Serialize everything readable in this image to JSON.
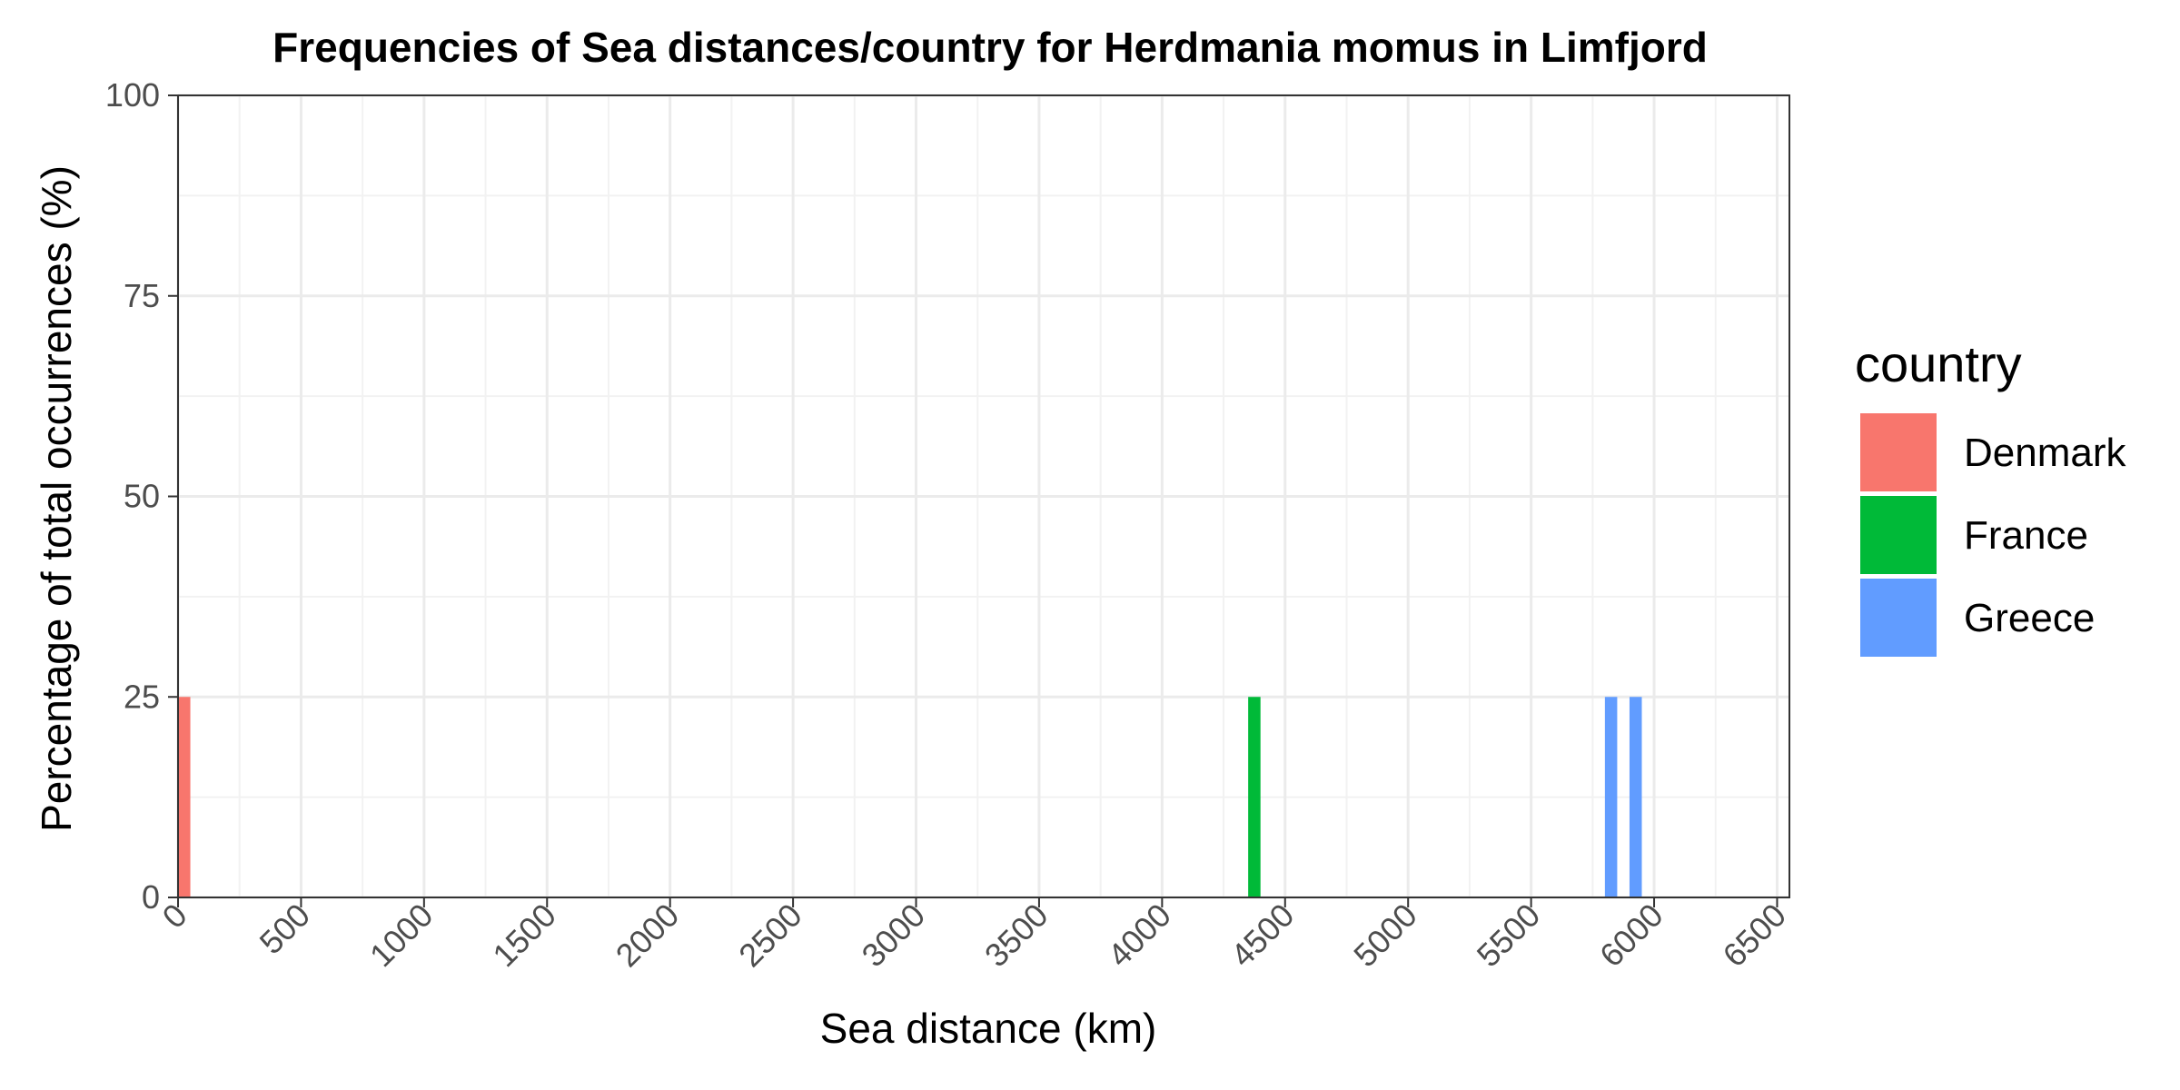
{
  "chart_data": {
    "type": "bar",
    "title": "Frequencies of Sea distances/country for Herdmania momus in Limfjord",
    "xlabel": "Sea distance (km)",
    "ylabel": "Percentage of total occurrences (%)",
    "xlim": [
      0,
      6550
    ],
    "ylim": [
      0,
      100
    ],
    "x_ticks": [
      "0",
      "500",
      "1000",
      "1500",
      "2000",
      "2500",
      "3000",
      "3500",
      "4000",
      "4500",
      "5000",
      "5500",
      "6000",
      "6500"
    ],
    "y_ticks": [
      "0",
      "25",
      "50",
      "75",
      "100"
    ],
    "grid": true,
    "legend_title": "country",
    "legend_position": "right",
    "series": [
      {
        "name": "Denmark",
        "color": "#F8766D",
        "bars": [
          {
            "x": 25,
            "y": 25
          }
        ]
      },
      {
        "name": "France",
        "color": "#00BA38",
        "bars": [
          {
            "x": 4375,
            "y": 25
          }
        ]
      },
      {
        "name": "Greece",
        "color": "#619CFF",
        "bars": [
          {
            "x": 5825,
            "y": 25
          },
          {
            "x": 5925,
            "y": 25
          }
        ]
      }
    ]
  }
}
